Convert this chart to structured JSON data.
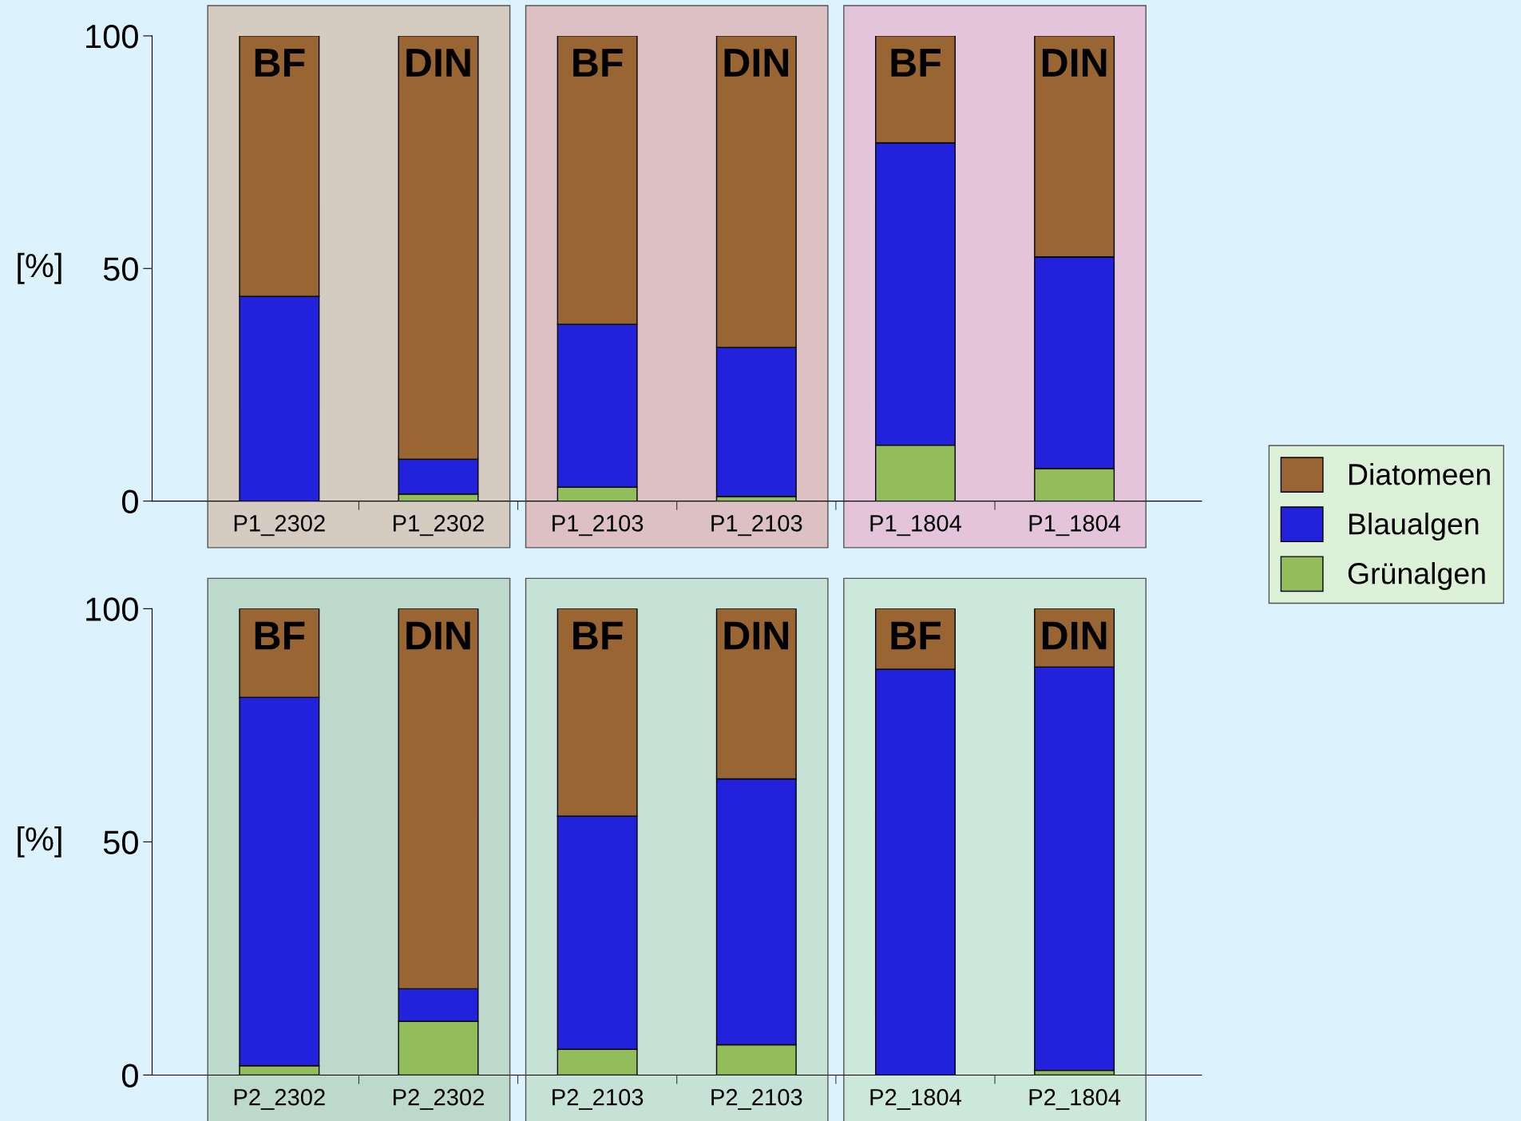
{
  "chart_data": [
    {
      "type": "bar",
      "stacked": true,
      "ylabel": "[%]",
      "categories": [
        "P1_2302",
        "P1_2302",
        "P1_2103",
        "P1_2103",
        "P1_1804",
        "P1_1804"
      ],
      "ylim": [
        0,
        100
      ],
      "yticks": [
        0,
        50,
        100
      ],
      "grid": false,
      "legend": "right",
      "annotations": [
        "BF",
        "DIN",
        "BF",
        "DIN",
        "BF",
        "DIN"
      ],
      "series": [
        {
          "name": "Grünalgen",
          "color": "#92bd5a",
          "values": [
            0,
            1.5,
            3,
            1,
            12,
            7
          ]
        },
        {
          "name": "Blaualgen",
          "color": "#2222dd",
          "values": [
            44,
            7.5,
            35,
            32,
            65,
            45.5
          ]
        },
        {
          "name": "Diatomeen",
          "color": "#996633",
          "values": [
            56,
            91,
            62,
            67,
            23,
            47.5
          ]
        }
      ]
    },
    {
      "type": "bar",
      "stacked": true,
      "ylabel": "[%]",
      "categories": [
        "P2_2302",
        "P2_2302",
        "P2_2103",
        "P2_2103",
        "P2_1804",
        "P2_1804"
      ],
      "ylim": [
        0,
        100
      ],
      "yticks": [
        0,
        50,
        100
      ],
      "grid": false,
      "annotations": [
        "BF",
        "DIN",
        "BF",
        "DIN",
        "BF",
        "DIN"
      ],
      "series": [
        {
          "color": "#92bd5a",
          "values": [
            2,
            11.5,
            5.5,
            6.5,
            0,
            1
          ]
        },
        {
          "color": "#2222dd",
          "values": [
            79,
            7,
            50,
            57,
            87,
            86.5
          ]
        },
        {
          "color": "#996633",
          "values": [
            19,
            81.5,
            44.5,
            36.5,
            13,
            12.5
          ]
        }
      ]
    }
  ]
}
